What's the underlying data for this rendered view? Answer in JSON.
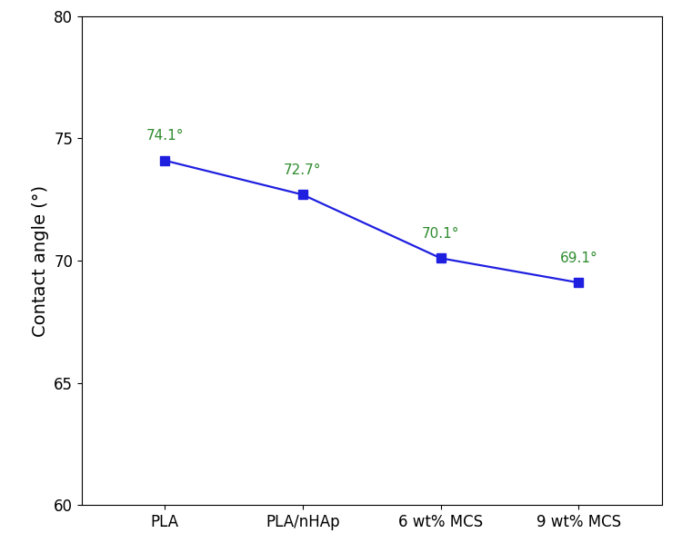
{
  "chart_data": {
    "type": "line",
    "categories": [
      "PLA",
      "PLA/nHAp",
      "6 wt% MCS",
      "9 wt% MCS"
    ],
    "values": [
      74.1,
      72.7,
      70.1,
      69.1
    ],
    "value_labels": [
      "74.1°",
      "72.7°",
      "70.1°",
      "69.1°"
    ],
    "data_labels": true,
    "y_label": "Contact angle (°)",
    "ylim": [
      60,
      80
    ],
    "yticks": [
      60,
      65,
      70,
      75,
      80
    ],
    "color": "#1f1fe0",
    "marker": "square",
    "line_style": "solid",
    "grid": false
  }
}
